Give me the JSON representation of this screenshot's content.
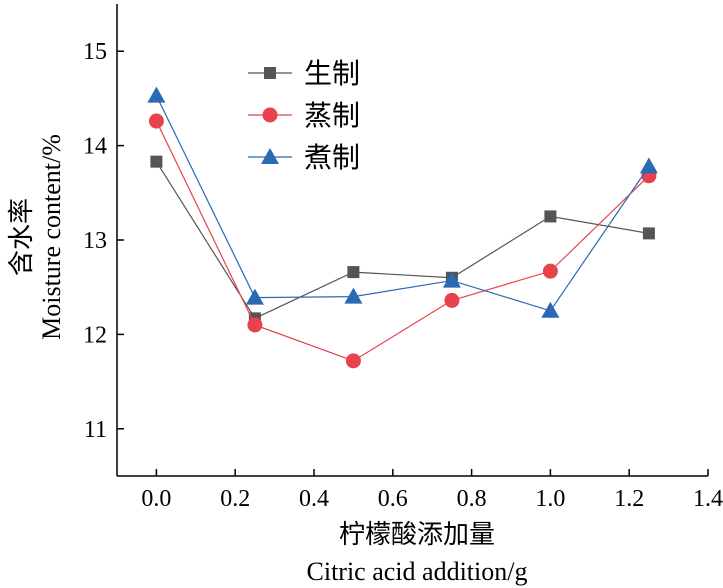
{
  "chart_data": {
    "type": "line",
    "title": "",
    "xlabel_cn": "柠檬酸添加量",
    "xlabel_en": "Citric acid addition/g",
    "ylabel_cn": "含水率",
    "ylabel_en": "Moisture content/%",
    "x": [
      0.0,
      0.25,
      0.5,
      0.75,
      1.0,
      1.25
    ],
    "xlim": [
      -0.1,
      1.4
    ],
    "ylim": [
      10.5,
      15.5
    ],
    "xticks": [
      0.0,
      0.2,
      0.4,
      0.6,
      0.8,
      1.0,
      1.2,
      1.4
    ],
    "xtick_labels": [
      "0.0",
      "0.2",
      "0.4",
      "0.6",
      "0.8",
      "1.0",
      "1.2",
      "1.4"
    ],
    "yticks": [
      11,
      12,
      13,
      14,
      15
    ],
    "ytick_labels": [
      "11",
      "12",
      "13",
      "14",
      "15"
    ],
    "legend_position": "upper-left",
    "series": [
      {
        "name": "生制",
        "marker": "square",
        "color": "#555555",
        "values": [
          13.83,
          12.17,
          12.66,
          12.6,
          13.25,
          13.07
        ]
      },
      {
        "name": "蒸制",
        "marker": "circle",
        "color": "#e8424f",
        "values": [
          14.26,
          12.1,
          11.72,
          12.36,
          12.67,
          13.68
        ]
      },
      {
        "name": "煮制",
        "marker": "triangle",
        "color": "#2a6ab4",
        "values": [
          14.53,
          12.39,
          12.4,
          12.57,
          12.25,
          13.78
        ]
      }
    ]
  }
}
